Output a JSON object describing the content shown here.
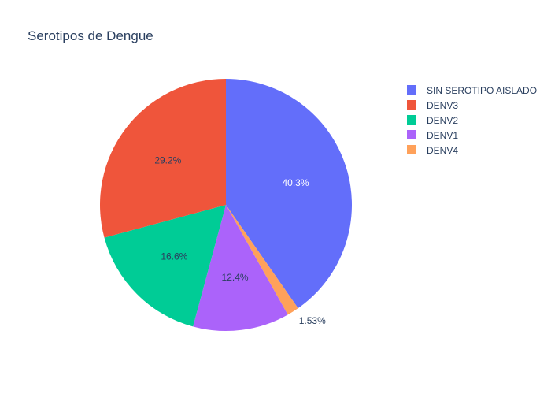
{
  "chart_data": {
    "type": "pie",
    "title": "Serotipos de Dengue",
    "labels": [
      "SIN SEROTIPO AISLADO",
      "DENV4",
      "DENV1",
      "DENV2",
      "DENV3"
    ],
    "values": [
      40.3,
      1.53,
      12.4,
      16.6,
      29.2
    ],
    "percent_labels": [
      "40.3%",
      "1.53%",
      "12.4%",
      "16.6%",
      "29.2%"
    ],
    "colors": [
      "#636efa",
      "#ffa15a",
      "#ab63fa",
      "#00cc96",
      "#ef553b"
    ],
    "label_colors": [
      "#ffffff",
      "#2a3f5f",
      "#2a3f5f",
      "#2a3f5f",
      "#2a3f5f"
    ],
    "legend_order": [
      "SIN SEROTIPO AISLADO",
      "DENV3",
      "DENV2",
      "DENV1",
      "DENV4"
    ],
    "legend_placement": "top-right",
    "direction": "clockwise",
    "start_angle": "top"
  }
}
